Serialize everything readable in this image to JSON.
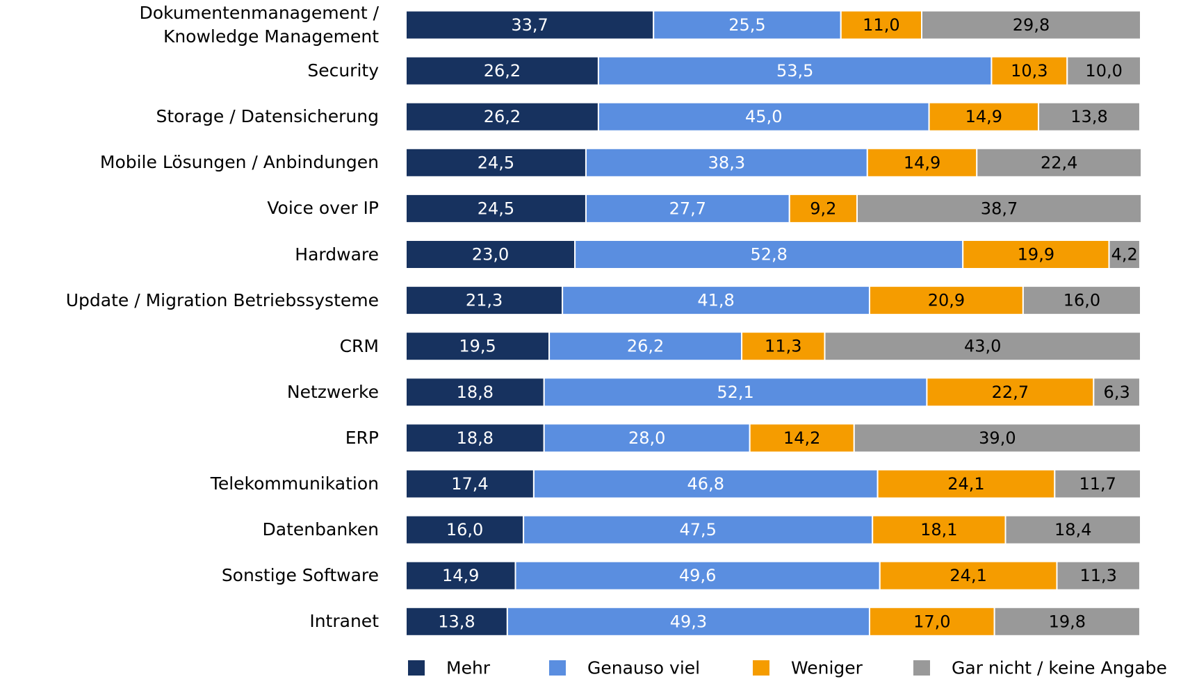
{
  "chart_data": {
    "type": "stacked-bar-horizontal",
    "categories": [
      "Dokumentenmanagement /\nKnowledge Management",
      "Security",
      "Storage / Datensicherung",
      "Mobile Lösungen / Anbindungen",
      "Voice over IP",
      "Hardware",
      "Update / Migration Betriebssysteme",
      "CRM",
      "Netzwerke",
      "ERP",
      "Telekommunikation",
      "Datenbanken",
      "Sonstige Software",
      "Intranet"
    ],
    "xlim": [
      0,
      100
    ],
    "series": [
      {
        "name": "Mehr",
        "color": "#17325f",
        "label_color": "#ffffff",
        "values": [
          33.7,
          26.2,
          26.2,
          24.5,
          24.5,
          23.0,
          21.3,
          19.5,
          18.8,
          18.8,
          17.4,
          16.0,
          14.9,
          13.8
        ],
        "value_labels": [
          "33,7",
          "26,2",
          "26,2",
          "24,5",
          "24,5",
          "23,0",
          "21,3",
          "19,5",
          "18,8",
          "18,8",
          "17,4",
          "16,0",
          "14,9",
          "13,8"
        ]
      },
      {
        "name": "Genauso viel",
        "color": "#5a8ee0",
        "label_color": "#ffffff",
        "values": [
          25.5,
          53.5,
          45.0,
          38.3,
          27.7,
          52.8,
          41.8,
          26.2,
          52.1,
          28.0,
          46.8,
          47.5,
          49.6,
          49.3
        ],
        "value_labels": [
          "25,5",
          "53,5",
          "45,0",
          "38,3",
          "27,7",
          "52,8",
          "41,8",
          "26,2",
          "52,1",
          "28,0",
          "46,8",
          "47,5",
          "49,6",
          "49,3"
        ]
      },
      {
        "name": "Weniger",
        "color": "#f59c00",
        "label_color": "#000000",
        "values": [
          11.0,
          10.3,
          14.9,
          14.9,
          9.2,
          19.9,
          20.9,
          11.3,
          22.7,
          14.2,
          24.1,
          18.1,
          24.1,
          17.0
        ],
        "value_labels": [
          "11,0",
          "10,3",
          "14,9",
          "14,9",
          "9,2",
          "19,9",
          "20,9",
          "11,3",
          "22,7",
          "14,2",
          "24,1",
          "18,1",
          "24,1",
          "17,0"
        ]
      },
      {
        "name": "Gar nicht / keine Angabe",
        "color": "#999999",
        "label_color": "#000000",
        "values": [
          29.8,
          10.0,
          13.8,
          22.4,
          38.7,
          4.2,
          16.0,
          43.0,
          6.3,
          39.0,
          11.7,
          18.4,
          11.3,
          19.8
        ],
        "value_labels": [
          "29,8",
          "10,0",
          "13,8",
          "22,4",
          "38,7",
          "4,2",
          "16,0",
          "43,0",
          "6,3",
          "39,0",
          "11,7",
          "18,4",
          "11,3",
          "19,8"
        ]
      }
    ],
    "legend": "bottom"
  }
}
